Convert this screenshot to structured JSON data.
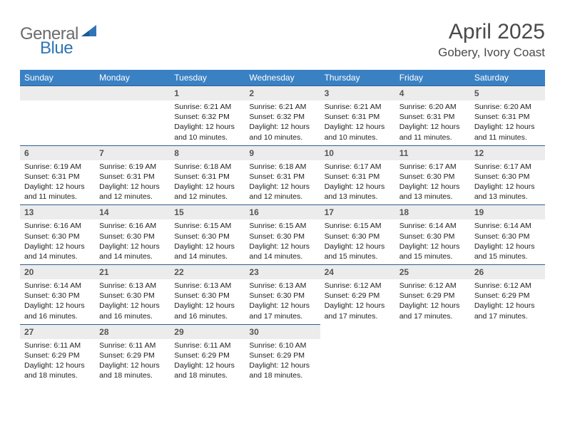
{
  "brand": {
    "part1": "General",
    "part2": "Blue"
  },
  "title": "April 2025",
  "location": "Gobery, Ivory Coast",
  "colors": {
    "header_bg": "#3a81c4",
    "header_text": "#ffffff",
    "rule": "#2f5f8f",
    "daynum_bg": "#ececec",
    "daynum_text": "#555555",
    "body_text": "#222222",
    "brand_gray": "#6b6b6b",
    "brand_blue": "#2f75b5",
    "page_bg": "#ffffff"
  },
  "weekdays": [
    "Sunday",
    "Monday",
    "Tuesday",
    "Wednesday",
    "Thursday",
    "Friday",
    "Saturday"
  ],
  "leading_blanks": 2,
  "days": [
    {
      "n": 1,
      "sunrise": "6:21 AM",
      "sunset": "6:32 PM",
      "daylight": "12 hours and 10 minutes."
    },
    {
      "n": 2,
      "sunrise": "6:21 AM",
      "sunset": "6:32 PM",
      "daylight": "12 hours and 10 minutes."
    },
    {
      "n": 3,
      "sunrise": "6:21 AM",
      "sunset": "6:31 PM",
      "daylight": "12 hours and 10 minutes."
    },
    {
      "n": 4,
      "sunrise": "6:20 AM",
      "sunset": "6:31 PM",
      "daylight": "12 hours and 11 minutes."
    },
    {
      "n": 5,
      "sunrise": "6:20 AM",
      "sunset": "6:31 PM",
      "daylight": "12 hours and 11 minutes."
    },
    {
      "n": 6,
      "sunrise": "6:19 AM",
      "sunset": "6:31 PM",
      "daylight": "12 hours and 11 minutes."
    },
    {
      "n": 7,
      "sunrise": "6:19 AM",
      "sunset": "6:31 PM",
      "daylight": "12 hours and 12 minutes."
    },
    {
      "n": 8,
      "sunrise": "6:18 AM",
      "sunset": "6:31 PM",
      "daylight": "12 hours and 12 minutes."
    },
    {
      "n": 9,
      "sunrise": "6:18 AM",
      "sunset": "6:31 PM",
      "daylight": "12 hours and 12 minutes."
    },
    {
      "n": 10,
      "sunrise": "6:17 AM",
      "sunset": "6:31 PM",
      "daylight": "12 hours and 13 minutes."
    },
    {
      "n": 11,
      "sunrise": "6:17 AM",
      "sunset": "6:30 PM",
      "daylight": "12 hours and 13 minutes."
    },
    {
      "n": 12,
      "sunrise": "6:17 AM",
      "sunset": "6:30 PM",
      "daylight": "12 hours and 13 minutes."
    },
    {
      "n": 13,
      "sunrise": "6:16 AM",
      "sunset": "6:30 PM",
      "daylight": "12 hours and 14 minutes."
    },
    {
      "n": 14,
      "sunrise": "6:16 AM",
      "sunset": "6:30 PM",
      "daylight": "12 hours and 14 minutes."
    },
    {
      "n": 15,
      "sunrise": "6:15 AM",
      "sunset": "6:30 PM",
      "daylight": "12 hours and 14 minutes."
    },
    {
      "n": 16,
      "sunrise": "6:15 AM",
      "sunset": "6:30 PM",
      "daylight": "12 hours and 14 minutes."
    },
    {
      "n": 17,
      "sunrise": "6:15 AM",
      "sunset": "6:30 PM",
      "daylight": "12 hours and 15 minutes."
    },
    {
      "n": 18,
      "sunrise": "6:14 AM",
      "sunset": "6:30 PM",
      "daylight": "12 hours and 15 minutes."
    },
    {
      "n": 19,
      "sunrise": "6:14 AM",
      "sunset": "6:30 PM",
      "daylight": "12 hours and 15 minutes."
    },
    {
      "n": 20,
      "sunrise": "6:14 AM",
      "sunset": "6:30 PM",
      "daylight": "12 hours and 16 minutes."
    },
    {
      "n": 21,
      "sunrise": "6:13 AM",
      "sunset": "6:30 PM",
      "daylight": "12 hours and 16 minutes."
    },
    {
      "n": 22,
      "sunrise": "6:13 AM",
      "sunset": "6:30 PM",
      "daylight": "12 hours and 16 minutes."
    },
    {
      "n": 23,
      "sunrise": "6:13 AM",
      "sunset": "6:30 PM",
      "daylight": "12 hours and 17 minutes."
    },
    {
      "n": 24,
      "sunrise": "6:12 AM",
      "sunset": "6:29 PM",
      "daylight": "12 hours and 17 minutes."
    },
    {
      "n": 25,
      "sunrise": "6:12 AM",
      "sunset": "6:29 PM",
      "daylight": "12 hours and 17 minutes."
    },
    {
      "n": 26,
      "sunrise": "6:12 AM",
      "sunset": "6:29 PM",
      "daylight": "12 hours and 17 minutes."
    },
    {
      "n": 27,
      "sunrise": "6:11 AM",
      "sunset": "6:29 PM",
      "daylight": "12 hours and 18 minutes."
    },
    {
      "n": 28,
      "sunrise": "6:11 AM",
      "sunset": "6:29 PM",
      "daylight": "12 hours and 18 minutes."
    },
    {
      "n": 29,
      "sunrise": "6:11 AM",
      "sunset": "6:29 PM",
      "daylight": "12 hours and 18 minutes."
    },
    {
      "n": 30,
      "sunrise": "6:10 AM",
      "sunset": "6:29 PM",
      "daylight": "12 hours and 18 minutes."
    }
  ],
  "labels": {
    "sunrise": "Sunrise:",
    "sunset": "Sunset:",
    "daylight": "Daylight:"
  }
}
